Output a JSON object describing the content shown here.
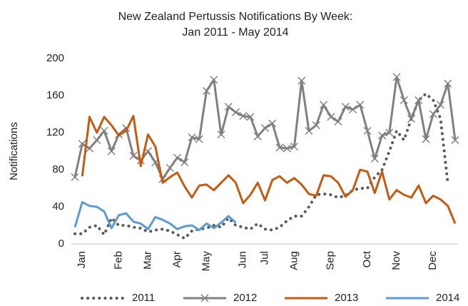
{
  "chart_data": {
    "type": "line",
    "title": [
      "New Zealand Pertussis Notifications By Week:",
      "Jan 2011 -  May 2014"
    ],
    "y_label": "Notifications",
    "categories": [
      null,
      "Jan",
      null,
      null,
      null,
      null,
      "Feb",
      null,
      null,
      null,
      "Mar",
      null,
      null,
      null,
      "Apr",
      null,
      null,
      null,
      "May",
      null,
      null,
      null,
      null,
      "Jun",
      null,
      null,
      "Jul",
      null,
      null,
      null,
      "Aug",
      null,
      null,
      null,
      null,
      "Sep",
      null,
      null,
      null,
      null,
      "Oct",
      null,
      null,
      null,
      "Nov",
      null,
      null,
      null,
      null,
      "Dec",
      null,
      null,
      null
    ],
    "ylim": [
      0,
      200
    ],
    "yticks": [
      0,
      40,
      80,
      120,
      160,
      200
    ],
    "grid": false,
    "legend": "bottom",
    "series": [
      {
        "name": "2011",
        "color": "#595959",
        "style": "dotted",
        "values": [
          11,
          11,
          18,
          20,
          10,
          28,
          20,
          20,
          18,
          17,
          13,
          15,
          16,
          14,
          10,
          6,
          14,
          16,
          17,
          20,
          18,
          28,
          20,
          18,
          16,
          22,
          16,
          15,
          18,
          25,
          30,
          30,
          40,
          53,
          54,
          53,
          50,
          52,
          58,
          60,
          60,
          72,
          80,
          100,
          122,
          112,
          135,
          155,
          162,
          155,
          135,
          65,
          null
        ]
      },
      {
        "name": "2012",
        "color": "#808080",
        "style": "solid",
        "marker": "x",
        "values": [
          72,
          108,
          103,
          112,
          122,
          100,
          118,
          125,
          95,
          90,
          100,
          88,
          70,
          82,
          93,
          88,
          115,
          113,
          165,
          177,
          118,
          148,
          142,
          138,
          137,
          116,
          125,
          130,
          104,
          103,
          105,
          176,
          122,
          128,
          150,
          137,
          132,
          148,
          145,
          150,
          122,
          92,
          117,
          120,
          180,
          155,
          135,
          155,
          113,
          140,
          150,
          173,
          112
        ]
      },
      {
        "name": "2013",
        "color": "#c55a11",
        "style": "solid",
        "values": [
          null,
          73,
          137,
          120,
          137,
          128,
          117,
          122,
          138,
          84,
          118,
          105,
          66,
          72,
          77,
          62,
          50,
          63,
          64,
          58,
          66,
          74,
          66,
          44,
          53,
          66,
          47,
          69,
          73,
          66,
          71,
          64,
          54,
          52,
          74,
          73,
          66,
          51,
          58,
          80,
          78,
          55,
          78,
          48,
          58,
          53,
          50,
          63,
          44,
          52,
          48,
          41,
          22
        ]
      },
      {
        "name": "2014",
        "color": "#5b9bd5",
        "style": "solid",
        "values": [
          18,
          45,
          41,
          40,
          35,
          17,
          31,
          33,
          24,
          22,
          16,
          29,
          26,
          22,
          16,
          19,
          20,
          15,
          22,
          17,
          23,
          30,
          23,
          null,
          null,
          null,
          null,
          null,
          null,
          null,
          null,
          null,
          null,
          null,
          null,
          null,
          null,
          null,
          null,
          null,
          null,
          null,
          null,
          null,
          null,
          null,
          null,
          null,
          null,
          null,
          null,
          null,
          null
        ]
      }
    ]
  }
}
